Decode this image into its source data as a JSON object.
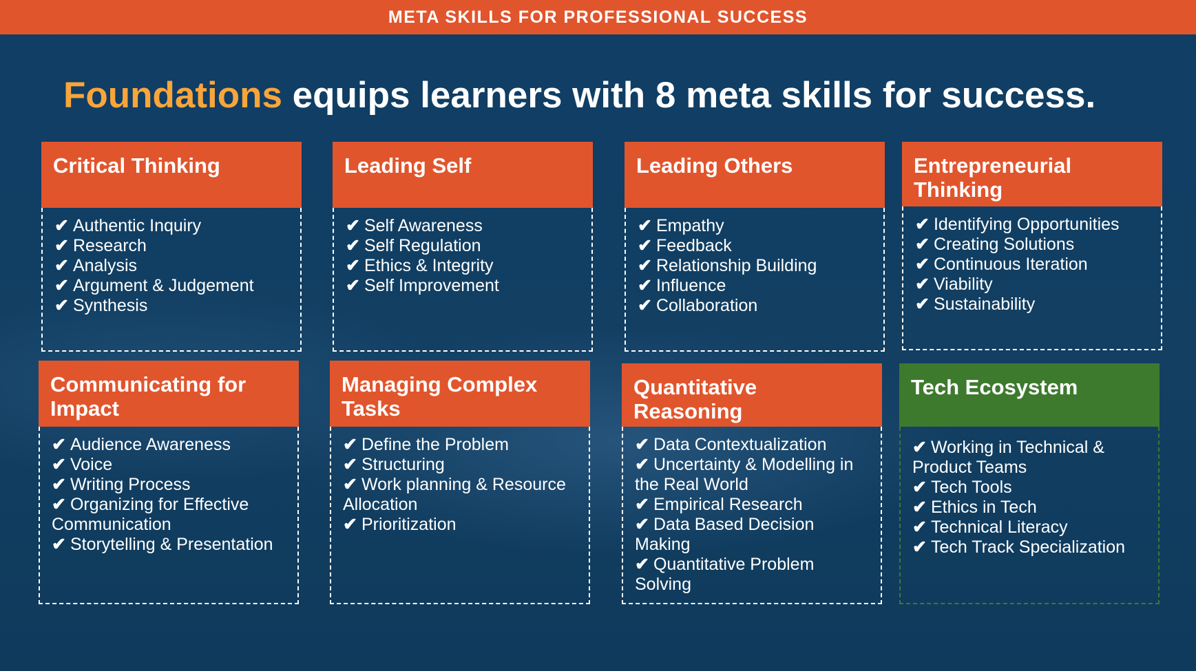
{
  "banner": {
    "title": "META SKILLS FOR PROFESSIONAL SUCCESS"
  },
  "headline": {
    "highlight": "Foundations",
    "rest": " equips learners with 8 meta skills for success."
  },
  "colors": {
    "orange": "#e1552d",
    "green": "#3d7a2e",
    "navy": "#103e63",
    "highlight": "#f9a53b"
  },
  "check_glyph": "✔",
  "cards": [
    {
      "title": "Critical Thinking",
      "items": [
        "Authentic Inquiry",
        "Research",
        "Analysis",
        "Argument & Judgement",
        "Synthesis"
      ]
    },
    {
      "title": "Leading Self",
      "items": [
        "Self Awareness",
        "Self Regulation",
        "Ethics & Integrity",
        "Self Improvement"
      ]
    },
    {
      "title": "Leading Others",
      "items": [
        "Empathy",
        "Feedback",
        "Relationship Building",
        "Influence",
        "Collaboration"
      ]
    },
    {
      "title": "Entrepreneurial Thinking",
      "items": [
        "Identifying Opportunities",
        "Creating Solutions",
        "Continuous Iteration",
        "Viability",
        "Sustainability"
      ]
    },
    {
      "title": "Communicating for Impact",
      "items": [
        "Audience Awareness",
        "Voice",
        "Writing Process",
        "Organizing for Effective Communication",
        "Storytelling & Presentation"
      ]
    },
    {
      "title": "Managing Complex Tasks",
      "items": [
        "Define the Problem",
        "Structuring",
        "Work planning & Resource Allocation",
        "Prioritization"
      ]
    },
    {
      "title": "Quantitative Reasoning",
      "items": [
        "Data Contextualization",
        "Uncertainty & Modelling in the Real World",
        "Empirical Research",
        "Data Based Decision Making",
        "Quantitative Problem Solving"
      ]
    },
    {
      "title": "Tech Ecosystem",
      "items": [
        "Working in Technical & Product Teams",
        "Tech Tools",
        "Ethics in Tech",
        "Technical Literacy",
        "Tech Track Specialization"
      ]
    }
  ]
}
